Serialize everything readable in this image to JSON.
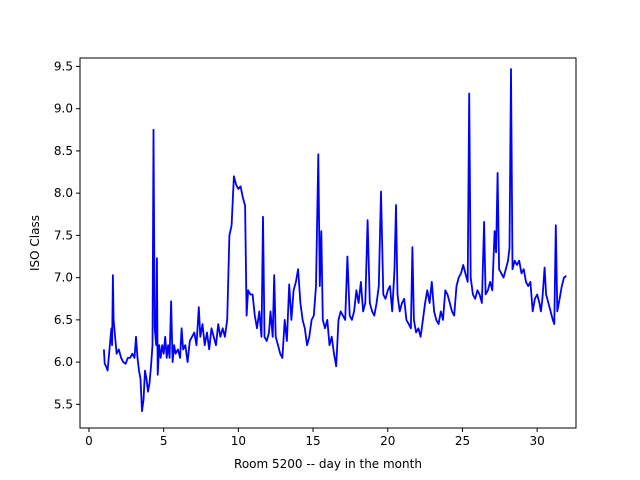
{
  "chart_data": {
    "type": "line",
    "title": "",
    "xlabel": "Room 5200 -- day in the month",
    "ylabel": "ISO Class",
    "xlim": [
      -0.6,
      32.6
    ],
    "ylim": [
      5.22,
      9.6
    ],
    "xticks": [
      0,
      5,
      10,
      15,
      20,
      25,
      30
    ],
    "xtick_labels": [
      "0",
      "5",
      "10",
      "15",
      "20",
      "25",
      "30"
    ],
    "yticks": [
      5.5,
      6.0,
      6.5,
      7.0,
      7.5,
      8.0,
      8.5,
      9.0,
      9.5
    ],
    "ytick_labels": [
      "5.5",
      "6.0",
      "6.5",
      "7.0",
      "7.5",
      "8.0",
      "8.5",
      "9.0",
      "9.5"
    ],
    "grid": false,
    "legend": "none",
    "series": [
      {
        "color": "#0000ff",
        "points": [
          [
            1.0,
            6.15
          ],
          [
            1.05,
            5.98
          ],
          [
            1.15,
            5.95
          ],
          [
            1.25,
            5.9
          ],
          [
            1.35,
            6.1
          ],
          [
            1.45,
            6.3
          ],
          [
            1.5,
            6.4
          ],
          [
            1.55,
            6.2
          ],
          [
            1.6,
            7.03
          ],
          [
            1.65,
            6.5
          ],
          [
            1.75,
            6.3
          ],
          [
            1.85,
            6.1
          ],
          [
            2.0,
            6.15
          ],
          [
            2.15,
            6.05
          ],
          [
            2.3,
            6.0
          ],
          [
            2.45,
            5.98
          ],
          [
            2.6,
            6.05
          ],
          [
            2.75,
            6.05
          ],
          [
            2.9,
            6.1
          ],
          [
            3.05,
            6.05
          ],
          [
            3.15,
            6.3
          ],
          [
            3.25,
            6.05
          ],
          [
            3.35,
            5.9
          ],
          [
            3.45,
            5.8
          ],
          [
            3.55,
            5.42
          ],
          [
            3.65,
            5.55
          ],
          [
            3.75,
            5.9
          ],
          [
            3.85,
            5.8
          ],
          [
            3.95,
            5.65
          ],
          [
            4.05,
            5.75
          ],
          [
            4.15,
            5.95
          ],
          [
            4.25,
            6.2
          ],
          [
            4.32,
            8.75
          ],
          [
            4.4,
            6.4
          ],
          [
            4.5,
            6.2
          ],
          [
            4.55,
            7.23
          ],
          [
            4.6,
            5.85
          ],
          [
            4.7,
            6.2
          ],
          [
            4.8,
            6.05
          ],
          [
            4.9,
            6.2
          ],
          [
            5.0,
            6.1
          ],
          [
            5.1,
            6.3
          ],
          [
            5.2,
            6.05
          ],
          [
            5.3,
            6.2
          ],
          [
            5.4,
            6.05
          ],
          [
            5.5,
            6.72
          ],
          [
            5.6,
            6.0
          ],
          [
            5.7,
            6.2
          ],
          [
            5.8,
            6.1
          ],
          [
            5.95,
            6.15
          ],
          [
            6.1,
            6.05
          ],
          [
            6.2,
            6.4
          ],
          [
            6.3,
            6.15
          ],
          [
            6.45,
            6.2
          ],
          [
            6.6,
            6.0
          ],
          [
            6.75,
            6.25
          ],
          [
            6.9,
            6.3
          ],
          [
            7.05,
            6.35
          ],
          [
            7.2,
            6.2
          ],
          [
            7.35,
            6.65
          ],
          [
            7.45,
            6.3
          ],
          [
            7.6,
            6.45
          ],
          [
            7.75,
            6.2
          ],
          [
            7.9,
            6.35
          ],
          [
            8.05,
            6.15
          ],
          [
            8.2,
            6.4
          ],
          [
            8.35,
            6.3
          ],
          [
            8.5,
            6.2
          ],
          [
            8.65,
            6.45
          ],
          [
            8.8,
            6.3
          ],
          [
            8.95,
            6.4
          ],
          [
            9.1,
            6.3
          ],
          [
            9.25,
            6.5
          ],
          [
            9.4,
            7.5
          ],
          [
            9.55,
            7.62
          ],
          [
            9.7,
            8.2
          ],
          [
            9.85,
            8.1
          ],
          [
            10.0,
            8.05
          ],
          [
            10.15,
            8.08
          ],
          [
            10.3,
            7.95
          ],
          [
            10.45,
            7.85
          ],
          [
            10.55,
            6.55
          ],
          [
            10.65,
            6.85
          ],
          [
            10.8,
            6.8
          ],
          [
            10.95,
            6.8
          ],
          [
            11.1,
            6.55
          ],
          [
            11.25,
            6.4
          ],
          [
            11.4,
            6.6
          ],
          [
            11.55,
            6.3
          ],
          [
            11.65,
            7.72
          ],
          [
            11.75,
            6.3
          ],
          [
            11.9,
            6.25
          ],
          [
            12.05,
            6.35
          ],
          [
            12.15,
            6.6
          ],
          [
            12.3,
            6.3
          ],
          [
            12.4,
            7.03
          ],
          [
            12.5,
            6.3
          ],
          [
            12.65,
            6.2
          ],
          [
            12.8,
            6.1
          ],
          [
            12.95,
            6.05
          ],
          [
            13.1,
            6.5
          ],
          [
            13.25,
            6.25
          ],
          [
            13.4,
            6.92
          ],
          [
            13.55,
            6.5
          ],
          [
            13.7,
            6.85
          ],
          [
            13.85,
            6.95
          ],
          [
            14.0,
            7.1
          ],
          [
            14.15,
            6.7
          ],
          [
            14.3,
            6.5
          ],
          [
            14.45,
            6.4
          ],
          [
            14.6,
            6.2
          ],
          [
            14.75,
            6.3
          ],
          [
            14.9,
            6.5
          ],
          [
            15.05,
            6.55
          ],
          [
            15.2,
            6.9
          ],
          [
            15.35,
            8.46
          ],
          [
            15.45,
            6.9
          ],
          [
            15.55,
            7.55
          ],
          [
            15.65,
            6.5
          ],
          [
            15.8,
            6.4
          ],
          [
            15.95,
            6.5
          ],
          [
            16.1,
            6.2
          ],
          [
            16.25,
            6.3
          ],
          [
            16.4,
            6.1
          ],
          [
            16.55,
            5.95
          ],
          [
            16.7,
            6.5
          ],
          [
            16.85,
            6.6
          ],
          [
            17.0,
            6.55
          ],
          [
            17.15,
            6.5
          ],
          [
            17.3,
            7.25
          ],
          [
            17.45,
            6.55
          ],
          [
            17.6,
            6.5
          ],
          [
            17.75,
            6.6
          ],
          [
            17.9,
            6.85
          ],
          [
            18.05,
            6.7
          ],
          [
            18.2,
            6.95
          ],
          [
            18.35,
            6.6
          ],
          [
            18.5,
            6.7
          ],
          [
            18.65,
            7.68
          ],
          [
            18.8,
            6.7
          ],
          [
            18.95,
            6.6
          ],
          [
            19.1,
            6.55
          ],
          [
            19.25,
            6.7
          ],
          [
            19.4,
            6.9
          ],
          [
            19.55,
            8.02
          ],
          [
            19.7,
            6.8
          ],
          [
            19.85,
            6.75
          ],
          [
            20.0,
            6.85
          ],
          [
            20.15,
            6.9
          ],
          [
            20.3,
            6.6
          ],
          [
            20.45,
            7.1
          ],
          [
            20.55,
            7.86
          ],
          [
            20.65,
            6.8
          ],
          [
            20.8,
            6.6
          ],
          [
            20.95,
            6.7
          ],
          [
            21.1,
            6.75
          ],
          [
            21.25,
            6.5
          ],
          [
            21.4,
            6.45
          ],
          [
            21.55,
            6.4
          ],
          [
            21.65,
            7.36
          ],
          [
            21.75,
            6.5
          ],
          [
            21.9,
            6.35
          ],
          [
            22.05,
            6.4
          ],
          [
            22.2,
            6.3
          ],
          [
            22.35,
            6.5
          ],
          [
            22.5,
            6.7
          ],
          [
            22.65,
            6.85
          ],
          [
            22.8,
            6.7
          ],
          [
            22.95,
            6.95
          ],
          [
            23.1,
            6.6
          ],
          [
            23.25,
            6.5
          ],
          [
            23.4,
            6.45
          ],
          [
            23.55,
            6.6
          ],
          [
            23.7,
            6.5
          ],
          [
            23.85,
            6.85
          ],
          [
            24.0,
            6.8
          ],
          [
            24.15,
            6.7
          ],
          [
            24.3,
            6.6
          ],
          [
            24.45,
            6.55
          ],
          [
            24.6,
            6.9
          ],
          [
            24.75,
            7.0
          ],
          [
            24.9,
            7.05
          ],
          [
            25.05,
            7.15
          ],
          [
            25.2,
            7.05
          ],
          [
            25.35,
            6.95
          ],
          [
            25.45,
            9.18
          ],
          [
            25.55,
            7.0
          ],
          [
            25.7,
            6.8
          ],
          [
            25.85,
            6.75
          ],
          [
            26.0,
            6.85
          ],
          [
            26.15,
            6.8
          ],
          [
            26.3,
            6.7
          ],
          [
            26.45,
            7.66
          ],
          [
            26.55,
            6.8
          ],
          [
            26.7,
            6.85
          ],
          [
            26.85,
            6.95
          ],
          [
            27.0,
            6.85
          ],
          [
            27.15,
            7.55
          ],
          [
            27.25,
            7.3
          ],
          [
            27.35,
            8.24
          ],
          [
            27.45,
            7.1
          ],
          [
            27.6,
            7.05
          ],
          [
            27.75,
            7.0
          ],
          [
            27.9,
            7.1
          ],
          [
            28.05,
            7.2
          ],
          [
            28.15,
            7.35
          ],
          [
            28.25,
            9.47
          ],
          [
            28.35,
            7.1
          ],
          [
            28.5,
            7.2
          ],
          [
            28.65,
            7.15
          ],
          [
            28.8,
            7.2
          ],
          [
            28.95,
            7.05
          ],
          [
            29.1,
            7.1
          ],
          [
            29.25,
            6.95
          ],
          [
            29.4,
            6.9
          ],
          [
            29.55,
            6.95
          ],
          [
            29.7,
            6.6
          ],
          [
            29.85,
            6.75
          ],
          [
            30.0,
            6.8
          ],
          [
            30.15,
            6.7
          ],
          [
            30.25,
            6.6
          ],
          [
            30.35,
            6.75
          ],
          [
            30.5,
            7.12
          ],
          [
            30.6,
            6.8
          ],
          [
            30.75,
            6.7
          ],
          [
            30.9,
            6.6
          ],
          [
            31.05,
            6.5
          ],
          [
            31.15,
            6.45
          ],
          [
            31.25,
            7.62
          ],
          [
            31.35,
            6.6
          ],
          [
            31.5,
            6.75
          ],
          [
            31.65,
            6.9
          ],
          [
            31.8,
            7.0
          ],
          [
            31.95,
            7.02
          ]
        ]
      }
    ]
  }
}
